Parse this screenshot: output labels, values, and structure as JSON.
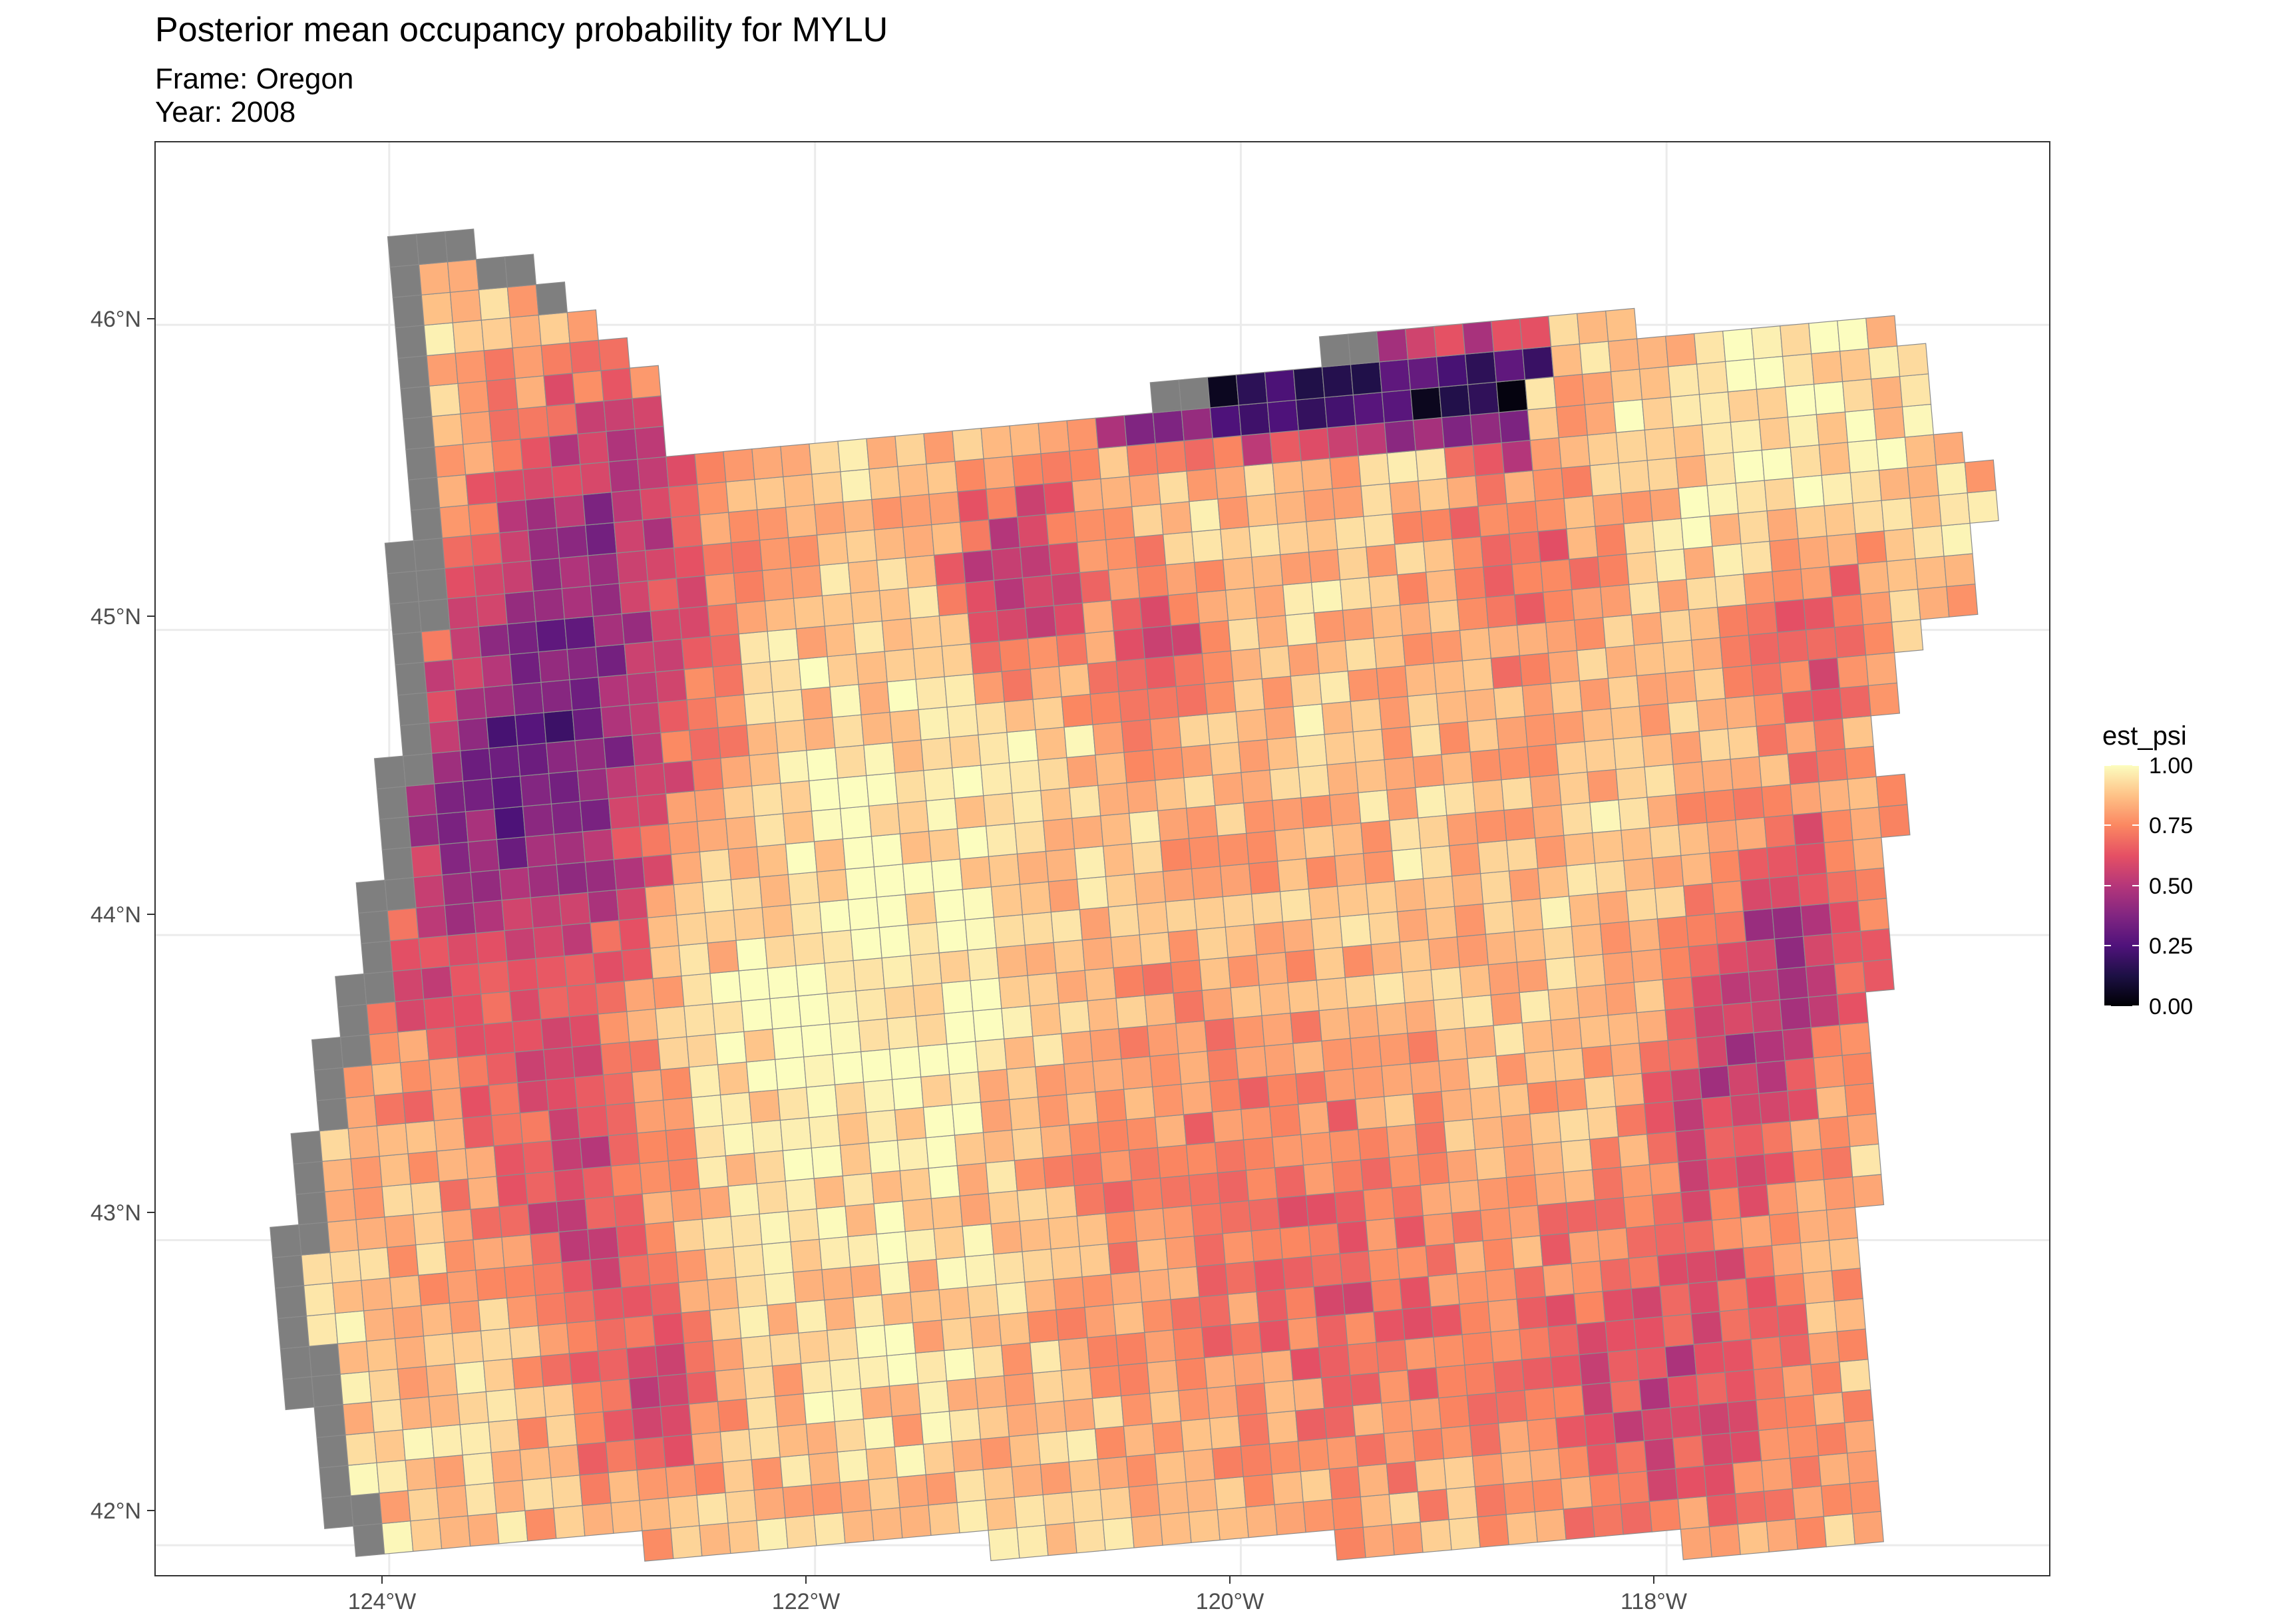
{
  "title": "Posterior mean occupancy probability for MYLU",
  "subtitle_frame": "Frame: Oregon",
  "subtitle_year": "Year: 2008",
  "x_ticks": [
    "124°W",
    "122°W",
    "120°W",
    "118°W"
  ],
  "y_ticks": [
    "46°N",
    "45°N",
    "44°N",
    "43°N",
    "42°N"
  ],
  "legend": {
    "title": "est_psi",
    "labels": [
      "1.00",
      "0.75",
      "0.50",
      "0.25",
      "0.00"
    ]
  },
  "colors": {
    "palette": "magma",
    "missing_cell": "#7f7f7f",
    "cell_border": "#8c8c8c",
    "panel_border": "#333333",
    "gridline": "#ebebeb",
    "scale_low": "#000004",
    "scale_mid": "#b73779",
    "scale_high": "#fcfdbf"
  },
  "chart_data": {
    "type": "heatmap",
    "title": "Posterior mean occupancy probability for MYLU",
    "fill_variable": "est_psi",
    "fill_range": [
      0,
      1
    ],
    "lon_range": [
      -125.1,
      -116.2
    ],
    "lat_range": [
      41.9,
      46.6
    ],
    "lon_ticks": [
      -124,
      -122,
      -120,
      -118
    ],
    "lat_ticks": [
      42,
      43,
      44,
      45,
      46
    ],
    "grid": true,
    "legend_position": "right",
    "region": "Oregon",
    "cells_note": "Approximately 1500 rotated grid cells covering Oregon; gray cells have no estimate."
  }
}
